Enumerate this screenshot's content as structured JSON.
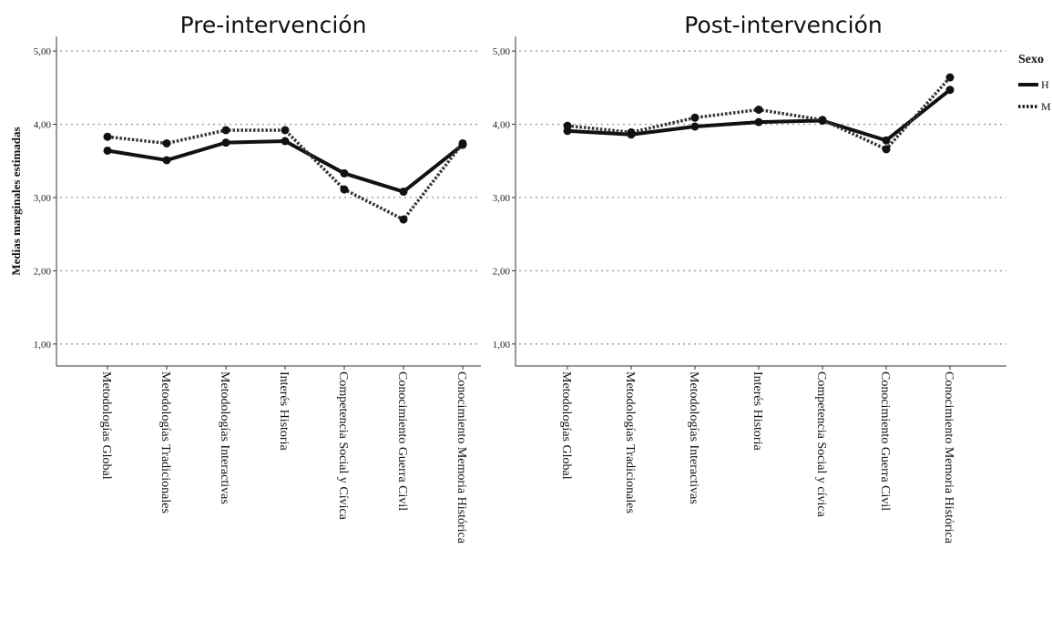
{
  "chart_data": [
    {
      "type": "line",
      "title": "Pre-intervención",
      "ylabel": "Medias marginales estimadas",
      "ylim": [
        0.7,
        5.2
      ],
      "yticks": [
        "1,00",
        "2,00",
        "3,00",
        "4,00",
        "5,00"
      ],
      "grid": true,
      "categories": [
        "Metodologías Global",
        "Metodologías Tradicionales",
        "Metodologías Interactivas",
        "Interés Historia",
        "Competencia Social y Cívica",
        "Conocimiento Guerra Civil",
        "Conocimiento Memoria Histórica"
      ],
      "series": [
        {
          "name": "H",
          "style": "solid",
          "color": "#111111",
          "values": [
            3.64,
            3.51,
            3.75,
            3.77,
            3.33,
            3.08,
            3.72
          ]
        },
        {
          "name": "M",
          "style": "dotted",
          "color": "#333333",
          "values": [
            3.83,
            3.74,
            3.92,
            3.92,
            3.11,
            2.7,
            3.74
          ]
        }
      ]
    },
    {
      "type": "line",
      "title": "Post-intervención",
      "ylabel": "",
      "ylim": [
        0.7,
        5.2
      ],
      "yticks": [
        "1,00",
        "2,00",
        "3,00",
        "4,00",
        "5,00"
      ],
      "grid": true,
      "categories": [
        "Metodologías Global",
        "Metodologías Tradicionales",
        "Metodologías Interactivas",
        "Interés Historia",
        "Competencia Social y cívica",
        "Conocimiento Guerra Civil",
        "Conocimiento Memoria Histórica"
      ],
      "series": [
        {
          "name": "H",
          "style": "solid",
          "color": "#111111",
          "values": [
            3.91,
            3.86,
            3.97,
            4.03,
            4.05,
            3.78,
            4.47
          ]
        },
        {
          "name": "M",
          "style": "dotted",
          "color": "#333333",
          "values": [
            3.98,
            3.89,
            4.09,
            4.2,
            4.06,
            3.66,
            4.64
          ]
        }
      ]
    }
  ],
  "legend": {
    "title": "Sexo",
    "placement": "top-right",
    "items": [
      {
        "label": "H",
        "style": "solid"
      },
      {
        "label": "M",
        "style": "dotted"
      }
    ]
  }
}
